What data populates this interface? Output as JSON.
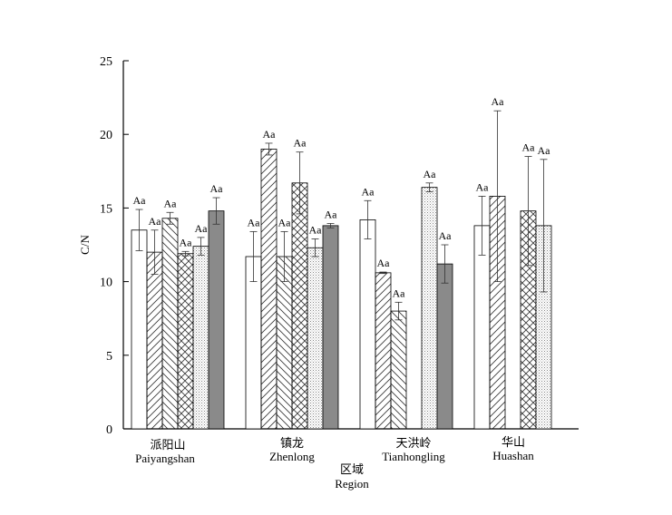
{
  "chart_data": {
    "type": "bar",
    "ylabel": "C/N",
    "xlabel": "区域",
    "xlabel_en": "Region",
    "ylim": [
      0,
      25
    ],
    "yticks": [
      0,
      5,
      10,
      15,
      20,
      25
    ],
    "categories": [
      {
        "name": "派阳山",
        "name_en": "Paiyangshan"
      },
      {
        "name": "镇龙",
        "name_en": "Zhenlong"
      },
      {
        "name": "天洪岭",
        "name_en": "Tianhongling"
      },
      {
        "name": "华山",
        "name_en": "Huashan"
      }
    ],
    "patterns": [
      "blank",
      "diag-up",
      "hatch-down",
      "cross",
      "dots",
      "dark"
    ],
    "groups": [
      {
        "bars": [
          {
            "value": 13.5,
            "error": 1.4,
            "label": "Aa"
          },
          {
            "value": 12.0,
            "error": 1.5,
            "label": "Aa"
          },
          {
            "value": 14.3,
            "error": 0.4,
            "label": "Aa"
          },
          {
            "value": 11.9,
            "error": 0.15,
            "label": "Aa"
          },
          {
            "value": 12.4,
            "error": 0.6,
            "label": "Aa"
          },
          {
            "value": 14.8,
            "error": 0.9,
            "label": "Aa"
          }
        ]
      },
      {
        "bars": [
          {
            "value": 11.7,
            "error": 1.7,
            "label": "Aa"
          },
          {
            "value": 19.0,
            "error": 0.4,
            "label": "Aa"
          },
          {
            "value": 11.7,
            "error": 1.7,
            "label": "Aa"
          },
          {
            "value": 16.7,
            "error": 2.1,
            "label": "Aa"
          },
          {
            "value": 12.3,
            "error": 0.6,
            "label": "Aa"
          },
          {
            "value": 13.8,
            "error": 0.15,
            "label": "Aa"
          }
        ]
      },
      {
        "bars": [
          {
            "value": 14.2,
            "error": 1.3,
            "label": "Aa"
          },
          {
            "value": 10.6,
            "error": 0.05,
            "label": "Aa"
          },
          {
            "value": 8.0,
            "error": 0.6,
            "label": "Aa"
          },
          null,
          {
            "value": 16.4,
            "error": 0.3,
            "label": "Aa"
          },
          {
            "value": 11.2,
            "error": 1.3,
            "label": "Aa"
          }
        ]
      },
      {
        "bars": [
          {
            "value": 13.8,
            "error": 2.0,
            "label": "Aa"
          },
          {
            "value": 15.8,
            "error": 5.8,
            "label": "Aa"
          },
          null,
          {
            "value": 14.8,
            "error": 3.7,
            "label": "Aa"
          },
          {
            "value": 13.8,
            "error": 4.5,
            "label": "Aa"
          },
          null
        ]
      }
    ]
  }
}
